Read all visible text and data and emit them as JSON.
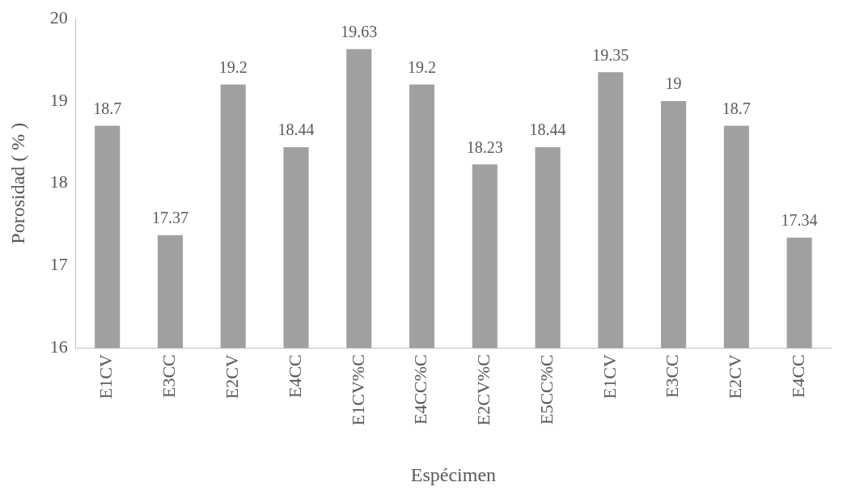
{
  "chart_data": {
    "type": "bar",
    "xlabel": "Espécimen",
    "ylabel": "Porosidad ( % )",
    "categories": [
      "E1CV",
      "E3CC",
      "E2CV",
      "E4CC",
      "E1CV%C",
      "E4CC%C",
      "E2CV%C",
      "E5CC%C",
      "E1CV",
      "E3CC",
      "E2CV",
      "E4CC"
    ],
    "values": [
      18.7,
      17.37,
      19.2,
      18.44,
      19.63,
      19.2,
      18.23,
      18.44,
      19.35,
      19,
      18.7,
      17.34
    ],
    "color": "#a0a0a0",
    "ylim": [
      16,
      20
    ],
    "yticks": [
      16,
      17,
      18,
      19,
      20
    ],
    "grid": false,
    "legend": false,
    "data_labels": true
  }
}
